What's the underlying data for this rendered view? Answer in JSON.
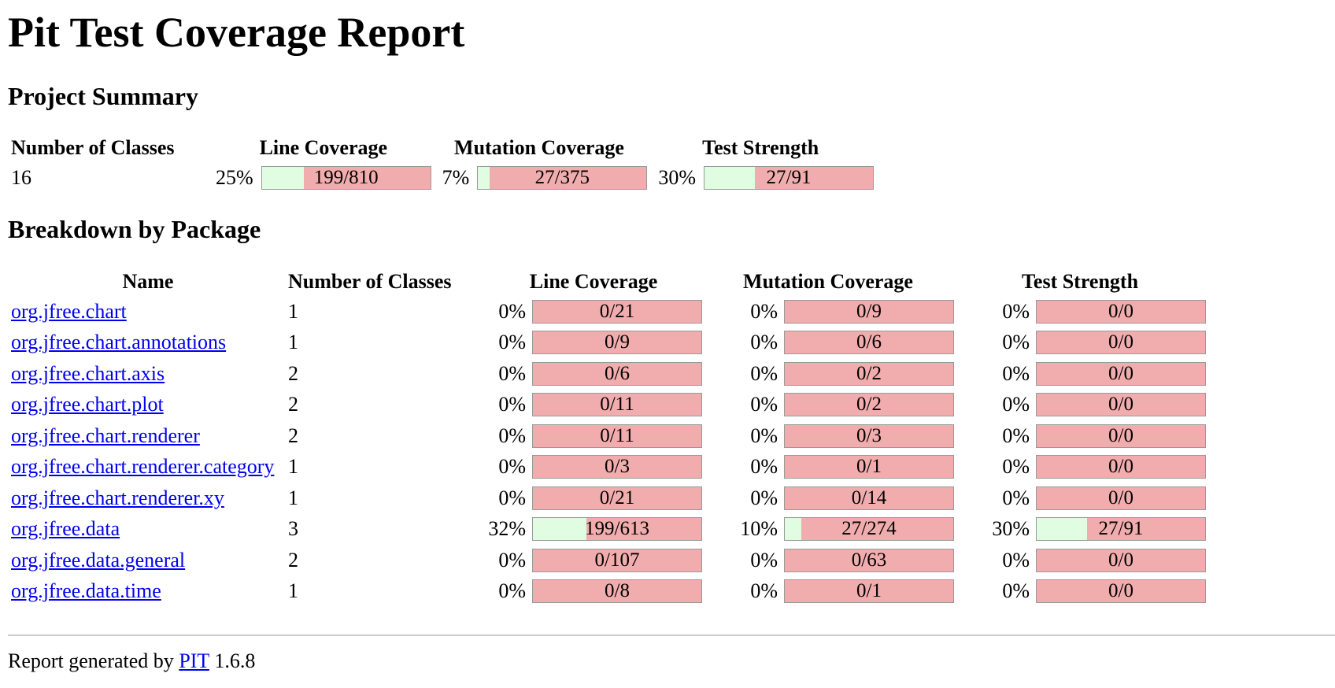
{
  "title": "Pit Test Coverage Report",
  "project_summary": {
    "heading": "Project Summary",
    "headers": {
      "classes": "Number of Classes",
      "line": "Line Coverage",
      "mutation": "Mutation Coverage",
      "strength": "Test Strength"
    },
    "classes": "16",
    "line": {
      "percent": "25%",
      "label": "199/810",
      "fraction": 0.25
    },
    "mutation": {
      "percent": "7%",
      "label": "27/375",
      "fraction": 0.07
    },
    "strength": {
      "percent": "30%",
      "label": "27/91",
      "fraction": 0.3
    }
  },
  "breakdown": {
    "heading": "Breakdown by Package",
    "headers": {
      "name": "Name",
      "classes": "Number of Classes",
      "line": "Line Coverage",
      "mutation": "Mutation Coverage",
      "strength": "Test Strength"
    },
    "packages": [
      {
        "name": "org.jfree.chart",
        "classes": "1",
        "line": {
          "percent": "0%",
          "label": "0/21",
          "fraction": 0
        },
        "mutation": {
          "percent": "0%",
          "label": "0/9",
          "fraction": 0
        },
        "strength": {
          "percent": "0%",
          "label": "0/0",
          "fraction": 0
        }
      },
      {
        "name": "org.jfree.chart.annotations",
        "classes": "1",
        "line": {
          "percent": "0%",
          "label": "0/9",
          "fraction": 0
        },
        "mutation": {
          "percent": "0%",
          "label": "0/6",
          "fraction": 0
        },
        "strength": {
          "percent": "0%",
          "label": "0/0",
          "fraction": 0
        }
      },
      {
        "name": "org.jfree.chart.axis",
        "classes": "2",
        "line": {
          "percent": "0%",
          "label": "0/6",
          "fraction": 0
        },
        "mutation": {
          "percent": "0%",
          "label": "0/2",
          "fraction": 0
        },
        "strength": {
          "percent": "0%",
          "label": "0/0",
          "fraction": 0
        }
      },
      {
        "name": "org.jfree.chart.plot",
        "classes": "2",
        "line": {
          "percent": "0%",
          "label": "0/11",
          "fraction": 0
        },
        "mutation": {
          "percent": "0%",
          "label": "0/2",
          "fraction": 0
        },
        "strength": {
          "percent": "0%",
          "label": "0/0",
          "fraction": 0
        }
      },
      {
        "name": "org.jfree.chart.renderer",
        "classes": "2",
        "line": {
          "percent": "0%",
          "label": "0/11",
          "fraction": 0
        },
        "mutation": {
          "percent": "0%",
          "label": "0/3",
          "fraction": 0
        },
        "strength": {
          "percent": "0%",
          "label": "0/0",
          "fraction": 0
        }
      },
      {
        "name": "org.jfree.chart.renderer.category",
        "classes": "1",
        "line": {
          "percent": "0%",
          "label": "0/3",
          "fraction": 0
        },
        "mutation": {
          "percent": "0%",
          "label": "0/1",
          "fraction": 0
        },
        "strength": {
          "percent": "0%",
          "label": "0/0",
          "fraction": 0
        }
      },
      {
        "name": "org.jfree.chart.renderer.xy",
        "classes": "1",
        "line": {
          "percent": "0%",
          "label": "0/21",
          "fraction": 0
        },
        "mutation": {
          "percent": "0%",
          "label": "0/14",
          "fraction": 0
        },
        "strength": {
          "percent": "0%",
          "label": "0/0",
          "fraction": 0
        }
      },
      {
        "name": "org.jfree.data",
        "classes": "3",
        "line": {
          "percent": "32%",
          "label": "199/613",
          "fraction": 0.32
        },
        "mutation": {
          "percent": "10%",
          "label": "27/274",
          "fraction": 0.1
        },
        "strength": {
          "percent": "30%",
          "label": "27/91",
          "fraction": 0.3
        }
      },
      {
        "name": "org.jfree.data.general",
        "classes": "2",
        "line": {
          "percent": "0%",
          "label": "0/107",
          "fraction": 0
        },
        "mutation": {
          "percent": "0%",
          "label": "0/63",
          "fraction": 0
        },
        "strength": {
          "percent": "0%",
          "label": "0/0",
          "fraction": 0
        }
      },
      {
        "name": "org.jfree.data.time",
        "classes": "1",
        "line": {
          "percent": "0%",
          "label": "0/8",
          "fraction": 0
        },
        "mutation": {
          "percent": "0%",
          "label": "0/1",
          "fraction": 0
        },
        "strength": {
          "percent": "0%",
          "label": "0/0",
          "fraction": 0
        }
      }
    ]
  },
  "footer": {
    "prefix": "Report generated by",
    "link_text": "PIT",
    "version": "1.6.8"
  },
  "colors": {
    "bar_covered": "#e1fde1",
    "bar_uncovered": "#f1adad",
    "link": "#0000ee"
  }
}
